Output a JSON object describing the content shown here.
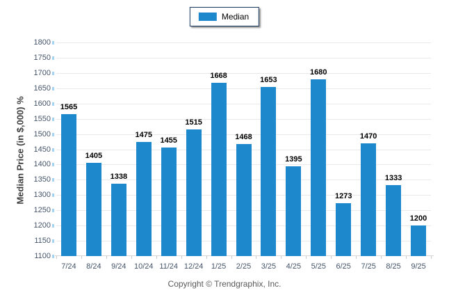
{
  "chart_data": {
    "type": "bar",
    "title": "",
    "ylabel": "Median Price (in $,000) %",
    "xlabel": "",
    "categories": [
      "7/24",
      "8/24",
      "9/24",
      "10/24",
      "11/24",
      "12/24",
      "1/25",
      "2/25",
      "3/25",
      "4/25",
      "5/25",
      "6/25",
      "7/25",
      "8/25",
      "9/25"
    ],
    "series": [
      {
        "name": "Median",
        "values": [
          1565,
          1405,
          1338,
          1475,
          1455,
          1515,
          1668,
          1468,
          1653,
          1395,
          1680,
          1273,
          1470,
          1333,
          1200
        ]
      }
    ],
    "ylim": [
      1100,
      1800
    ],
    "ytick_step": 50,
    "grid": true,
    "value_labels": true,
    "legend_position": "top-center",
    "colors": {
      "bar": "#1e88cc",
      "grid": "#e9e9e9",
      "axis_line": "#d6d6d6",
      "tick_label": "#44546a",
      "value_label": "#000000",
      "y_tick_mark": "#a6d3f2",
      "x_tick_mark": "#cccccc",
      "legend_border": "#17365d",
      "ylabel_text": "#3f3f3f",
      "footer_text": "#595959"
    }
  },
  "footer": {
    "copyright": "Copyright © Trendgraphix, Inc."
  }
}
